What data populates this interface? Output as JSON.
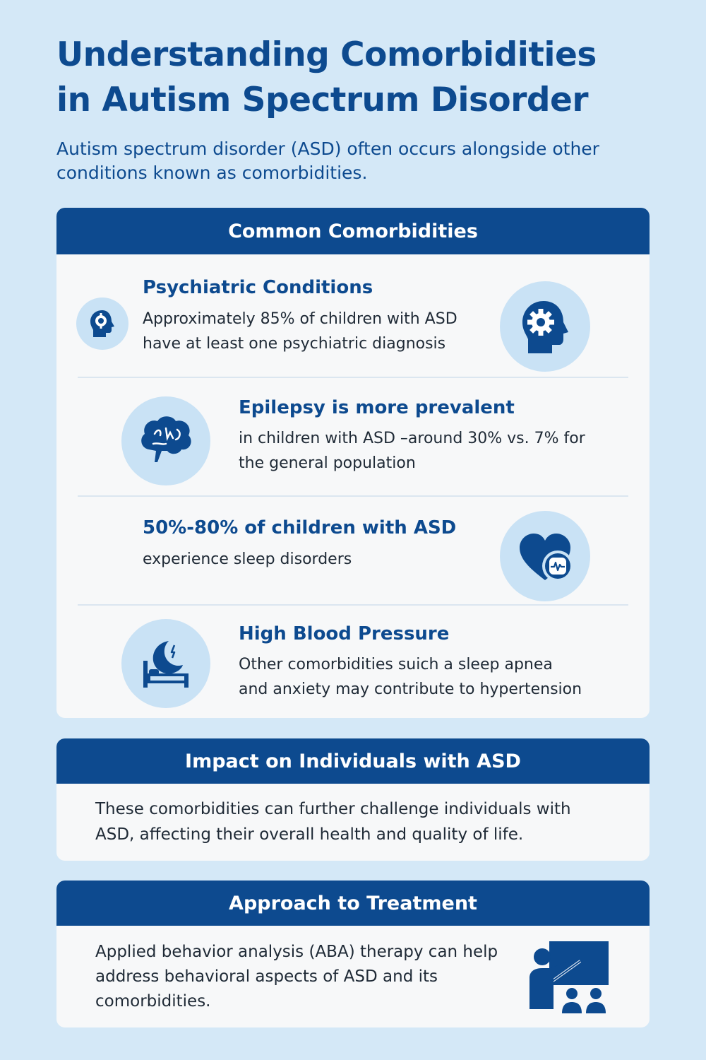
{
  "header": {
    "title_line1": "Understanding Comorbidities",
    "title_line2": "in Autism Spectrum Disorder",
    "subtitle_line1": "Autism spectrum disorder (ASD) often occurs alongside other",
    "subtitle_line2": "conditions known as comorbidities."
  },
  "comorbidities": {
    "heading": "Common Comorbidities",
    "items": [
      {
        "title": "Psychiatric Conditions",
        "text_line1": "Approximately 85% of children with ASD",
        "text_line2": "have at least one psychiatric diagnosis",
        "icons": [
          "head-profile-icon",
          "gear-head-icon"
        ]
      },
      {
        "title": "Epilepsy is more prevalent",
        "text_line1": "in children with ASD –around 30% vs. 7% for",
        "text_line2": "the general population",
        "icons": [
          "brain-icon"
        ]
      },
      {
        "title": "50%-80% of children with ASD",
        "text_line1": "experience sleep disorders",
        "icons": [
          "heart-monitor-icon"
        ]
      },
      {
        "title": "High Blood Pressure",
        "text_line1": "Other comorbidities suich a sleep apnea",
        "text_line2": "and anxiety may contribute to hypertension",
        "icons": [
          "moon-bed-icon"
        ]
      }
    ]
  },
  "impact": {
    "heading": "Impact on Individuals with ASD",
    "text_line1": "These comorbidities can further challenge individuals with",
    "text_line2": "ASD, affecting their overall health and quality of life."
  },
  "treatment": {
    "heading": "Approach to Treatment",
    "text_line1": "Applied behavior analysis (ABA) therapy can help",
    "text_line2": "address behavioral aspects of ASD and its",
    "text_line3": "comorbidities.",
    "icon": "teacher-board-icon"
  },
  "colors": {
    "background": "#d4e8f7",
    "primary": "#0d4a8f",
    "icon_bg": "#c9e2f5",
    "card": "#f7f8f9"
  }
}
